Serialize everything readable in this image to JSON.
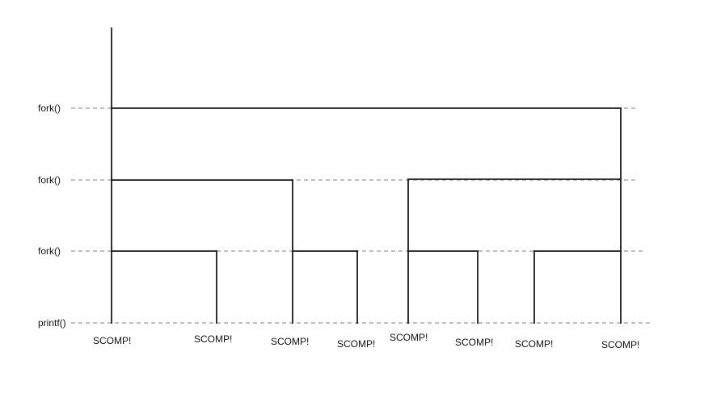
{
  "rows": [
    {
      "label": "fork()"
    },
    {
      "label": "fork()"
    },
    {
      "label": "fork()"
    },
    {
      "label": "printf()"
    }
  ],
  "outputs": [
    {
      "text": "SCOMP!"
    },
    {
      "text": "SCOMP!"
    },
    {
      "text": "SCOMP!"
    },
    {
      "text": "SCOMP!"
    },
    {
      "text": "SCOMP!"
    },
    {
      "text": "SCOMP!"
    },
    {
      "text": "SCOMP!"
    },
    {
      "text": "SCOMP!"
    }
  ]
}
